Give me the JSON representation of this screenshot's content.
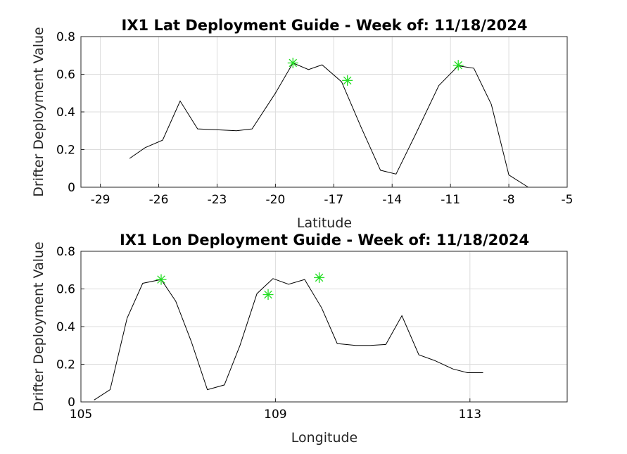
{
  "chart_data": [
    {
      "type": "line",
      "title": "IX1 Lat Deployment Guide - Week of: 11/18/2024",
      "xlabel": "Latitude",
      "ylabel": "Drifter Deployment Value",
      "xlim": [
        -30,
        -5
      ],
      "ylim": [
        0,
        0.8
      ],
      "xticks": [
        -29,
        -26,
        -23,
        -20,
        -17,
        -14,
        -11,
        -8,
        -5
      ],
      "yticks": [
        0,
        0.2,
        0.4,
        0.6,
        0.8
      ],
      "grid": true,
      "series": [
        {
          "x": [
            -27.5,
            -26.7,
            -25.8,
            -24.9,
            -24.0,
            -23.0,
            -22.0,
            -21.2,
            -20.0,
            -19.1,
            -18.3,
            -17.6,
            -16.6,
            -15.6,
            -14.6,
            -13.8,
            -12.8,
            -11.6,
            -10.6,
            -9.8,
            -8.9,
            -8.0,
            -7.0
          ],
          "y": [
            0.153,
            0.21,
            0.25,
            0.458,
            0.31,
            0.305,
            0.3,
            0.31,
            0.5,
            0.66,
            0.625,
            0.65,
            0.56,
            0.32,
            0.09,
            0.07,
            0.28,
            0.54,
            0.645,
            0.632,
            0.44,
            0.065,
            0.0
          ]
        }
      ],
      "markers": {
        "style": "green-asterisk",
        "x": [
          -19.1,
          -16.3,
          -10.6
        ],
        "y": [
          0.66,
          0.567,
          0.648
        ]
      }
    },
    {
      "type": "line",
      "title": "IX1 Lon Deployment Guide - Week of: 11/18/2024",
      "xlabel": "Longitude",
      "ylabel": "Drifter Deployment Value",
      "xlim": [
        105,
        115
      ],
      "ylim": [
        0,
        0.8
      ],
      "xticks": [
        105,
        109,
        113
      ],
      "yticks": [
        0,
        0.2,
        0.4,
        0.6,
        0.8
      ],
      "grid": true,
      "series": [
        {
          "x": [
            105.27,
            105.6,
            105.95,
            106.27,
            106.65,
            106.95,
            107.27,
            107.6,
            107.95,
            108.27,
            108.62,
            108.95,
            109.27,
            109.6,
            109.95,
            110.27,
            110.65,
            110.95,
            111.27,
            111.6,
            111.95,
            112.27,
            112.65,
            112.95,
            113.27
          ],
          "y": [
            0.01,
            0.065,
            0.445,
            0.63,
            0.65,
            0.535,
            0.32,
            0.065,
            0.09,
            0.3,
            0.575,
            0.655,
            0.625,
            0.65,
            0.5,
            0.31,
            0.3,
            0.3,
            0.305,
            0.458,
            0.25,
            0.22,
            0.175,
            0.155,
            0.155
          ]
        }
      ],
      "markers": {
        "style": "green-asterisk",
        "x": [
          106.65,
          108.85,
          109.9
        ],
        "y": [
          0.65,
          0.57,
          0.66
        ]
      }
    }
  ]
}
